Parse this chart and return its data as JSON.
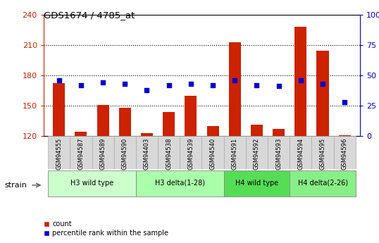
{
  "title": "GDS1674 / 4785_at",
  "samples": [
    "GSM94555",
    "GSM94587",
    "GSM94589",
    "GSM94590",
    "GSM94403",
    "GSM94538",
    "GSM94539",
    "GSM94540",
    "GSM94591",
    "GSM94592",
    "GSM94593",
    "GSM94594",
    "GSM94595",
    "GSM94596"
  ],
  "counts": [
    172,
    124,
    151,
    148,
    123,
    144,
    160,
    130,
    213,
    131,
    127,
    228,
    204,
    121
  ],
  "percentiles": [
    46,
    42,
    44,
    43,
    38,
    42,
    43,
    42,
    46,
    42,
    41,
    46,
    43,
    28
  ],
  "groups": [
    {
      "label": "H3 wild type",
      "start": 0,
      "end": 4,
      "color": "#ccffcc"
    },
    {
      "label": "H3 delta(1-28)",
      "start": 4,
      "end": 8,
      "color": "#aaffaa"
    },
    {
      "label": "H4 wild type",
      "start": 8,
      "end": 11,
      "color": "#55dd55"
    },
    {
      "label": "H4 delta(2-26)",
      "start": 11,
      "end": 14,
      "color": "#88ee88"
    }
  ],
  "ylim_left": [
    120,
    240
  ],
  "ylim_right": [
    0,
    100
  ],
  "yticks_left": [
    120,
    150,
    180,
    210,
    240
  ],
  "yticks_right": [
    0,
    25,
    50,
    75,
    100
  ],
  "bar_color": "#cc2200",
  "dot_color": "#0000cc",
  "baseline": 120,
  "left_tick_color": "#cc2200",
  "right_tick_color": "#0000cc",
  "grid_color": "#000000",
  "bg_color": "#ffffff",
  "sample_box_color": "#d8d8d8"
}
